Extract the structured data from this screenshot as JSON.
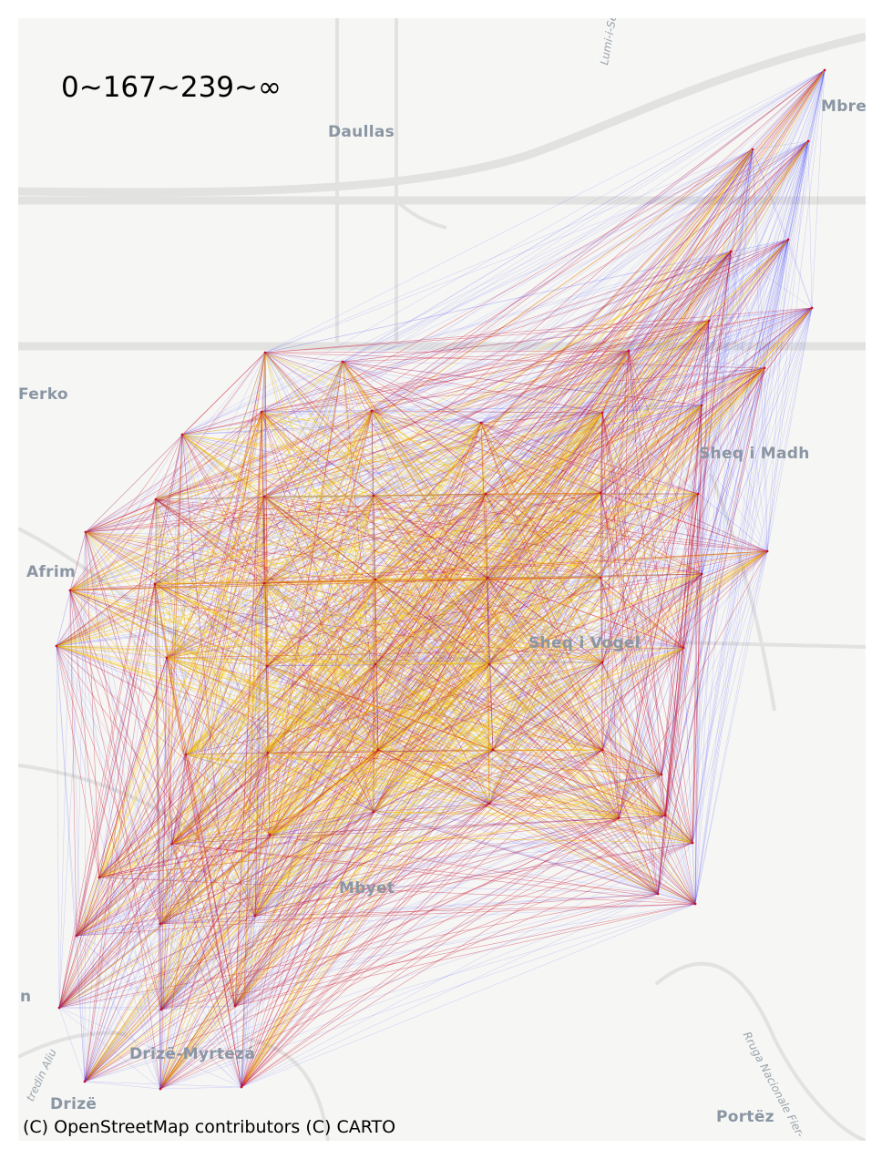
{
  "map": {
    "title": "0~167~239~∞",
    "attribution": "(C) OpenStreetMap contributors (C) CARTO",
    "place_labels": [
      {
        "id": "daullas",
        "text": "Daullas"
      },
      {
        "id": "ferko",
        "text": "Ferko"
      },
      {
        "id": "afrim",
        "text": "Afrim"
      },
      {
        "id": "sheq-i-madh",
        "text": "Sheq i Madh"
      },
      {
        "id": "sheq-i-vogel",
        "text": "Sheq i Vogel"
      },
      {
        "id": "mbyet",
        "text": "Mbyet"
      },
      {
        "id": "drize-myrteza",
        "text": "Drizë-Myrtezá"
      },
      {
        "id": "drize",
        "text": "Drizë"
      },
      {
        "id": "portez",
        "text": "Portëz"
      },
      {
        "id": "mbre",
        "text": "Mbre"
      },
      {
        "id": "an",
        "text": "n"
      }
    ],
    "road_labels": [
      {
        "id": "lumi-i-semanit",
        "text": "Lumi-i-Seman"
      },
      {
        "id": "rruga-nacionale",
        "text": "Rruga Nacionale Fier-"
      },
      {
        "id": "rruga-drizes",
        "text": "tredin Aliu"
      }
    ],
    "colors": {
      "low": "#3030ff",
      "mid": "#c8102e",
      "high": "#f5c400",
      "background": "#f6f6f4",
      "road": "#e2e2e0",
      "label": "#8a96a4"
    },
    "legend_bins": [
      "0",
      "167",
      "239",
      "∞"
    ]
  }
}
